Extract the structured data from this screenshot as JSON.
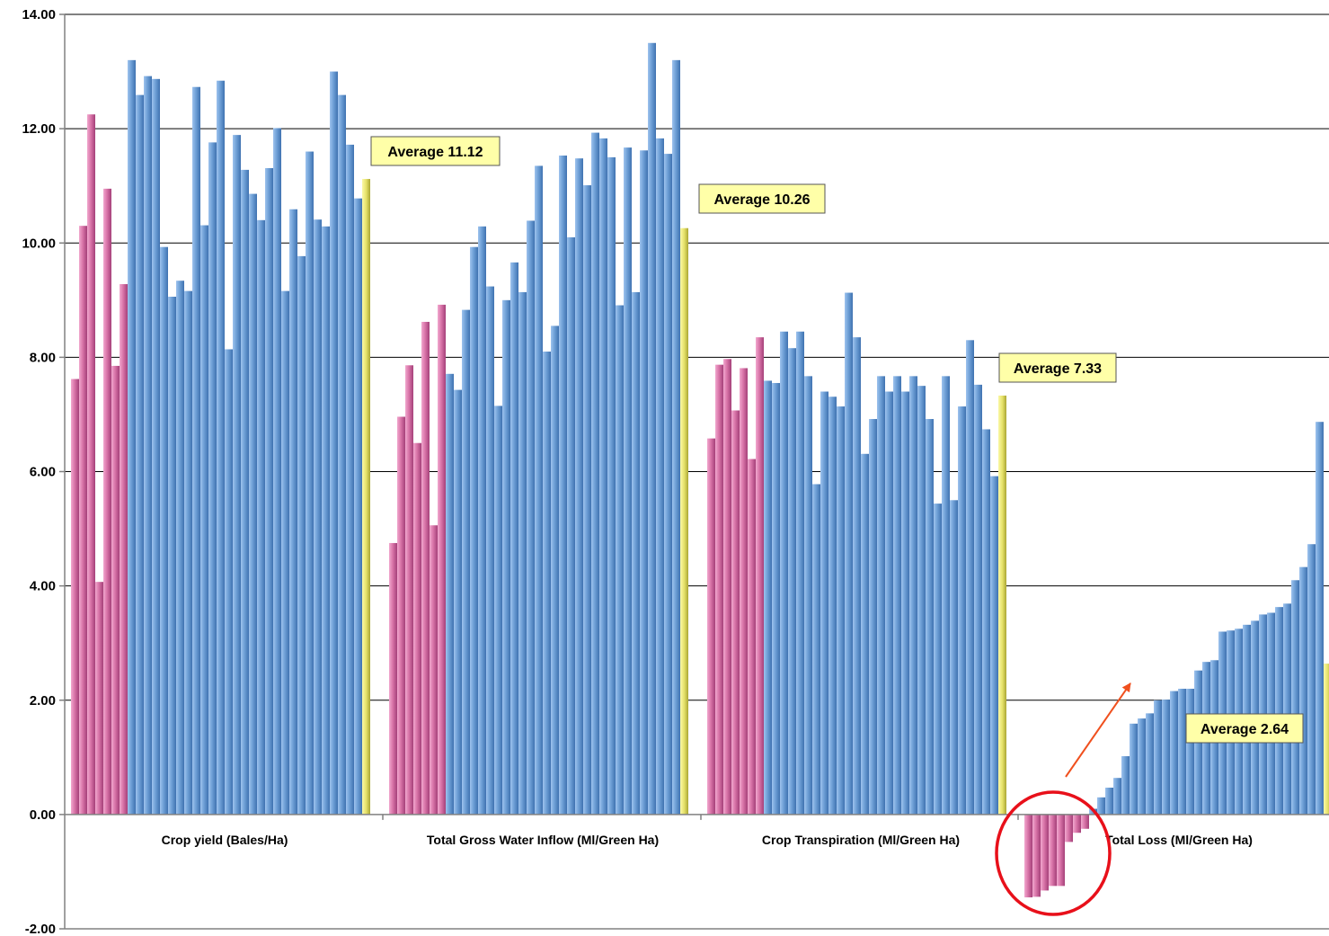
{
  "chart_data": {
    "type": "bar",
    "ylim": [
      -2,
      14
    ],
    "yticks": [
      -2,
      0,
      2,
      4,
      6,
      8,
      10,
      12,
      14
    ],
    "ytick_labels": [
      "-2.00",
      "0.00",
      "2.00",
      "4.00",
      "6.00",
      "8.00",
      "10.00",
      "12.00",
      "14.00"
    ],
    "grid": true,
    "colors": {
      "pink": "#d874a8",
      "blue": "#6e9fd6",
      "yellow": "#e6e26a",
      "annotation_bg": "#ffffa8",
      "circle": "#e8101a",
      "arrow": "#f0501e"
    },
    "groups": [
      {
        "label": "Crop yield (Bales/Ha)",
        "pink": [
          7.62,
          10.3,
          12.25,
          4.07,
          10.95,
          7.85,
          9.28
        ],
        "blue": [
          13.2,
          12.59,
          12.92,
          12.87,
          9.93,
          9.06,
          9.34,
          9.16,
          12.73,
          10.31,
          11.76,
          12.84,
          8.14,
          11.89,
          11.28,
          10.86,
          10.4,
          11.31,
          12.01,
          9.16,
          10.59,
          9.77,
          11.6,
          10.41,
          10.29,
          13.0,
          12.59,
          11.72,
          10.78
        ],
        "average": 11.12,
        "average_label": "Average 11.12"
      },
      {
        "label": "Total Gross Water Inflow (Ml/Green Ha)",
        "pink": [
          4.75,
          6.96,
          7.86,
          6.5,
          8.62,
          5.06,
          8.92
        ],
        "blue": [
          7.71,
          7.43,
          8.83,
          9.93,
          10.29,
          9.24,
          7.15,
          9.0,
          9.66,
          9.14,
          10.39,
          11.35,
          8.1,
          8.55,
          11.53,
          10.1,
          11.48,
          11.01,
          11.93,
          11.83,
          11.5,
          8.91,
          11.67,
          9.14,
          11.62,
          13.5,
          11.83,
          11.56,
          13.2
        ],
        "average": 10.26,
        "average_label": "Average 10.26"
      },
      {
        "label": "Crop Transpiration (Ml/Green Ha)",
        "pink": [
          6.58,
          7.87,
          7.97,
          7.07,
          7.81,
          6.22,
          8.35
        ],
        "blue": [
          7.59,
          7.55,
          8.45,
          8.16,
          8.45,
          7.67,
          5.78,
          7.4,
          7.31,
          7.14,
          9.13,
          8.35,
          6.31,
          6.92,
          7.67,
          7.4,
          7.67,
          7.4,
          7.67,
          7.5,
          6.92,
          5.44,
          7.67,
          5.5,
          7.14,
          8.3,
          7.52,
          6.74,
          5.92
        ],
        "average": 7.33,
        "average_label": "Average 7.33"
      },
      {
        "label": "Total Loss (Ml/Green Ha)",
        "pink": [
          -1.45,
          -1.44,
          -1.33,
          -1.25,
          -1.25,
          -0.48,
          -0.32,
          -0.25
        ],
        "blue": [
          0.1,
          0.3,
          0.47,
          0.64,
          1.02,
          1.59,
          1.68,
          1.77,
          2.0,
          2.01,
          2.16,
          2.2,
          2.2,
          2.52,
          2.67,
          2.7,
          3.2,
          3.22,
          3.25,
          3.32,
          3.39,
          3.5,
          3.53,
          3.63,
          3.69,
          4.1,
          4.33,
          4.73,
          6.87
        ],
        "average": 2.64,
        "average_label": "Average 2.64"
      }
    ]
  }
}
